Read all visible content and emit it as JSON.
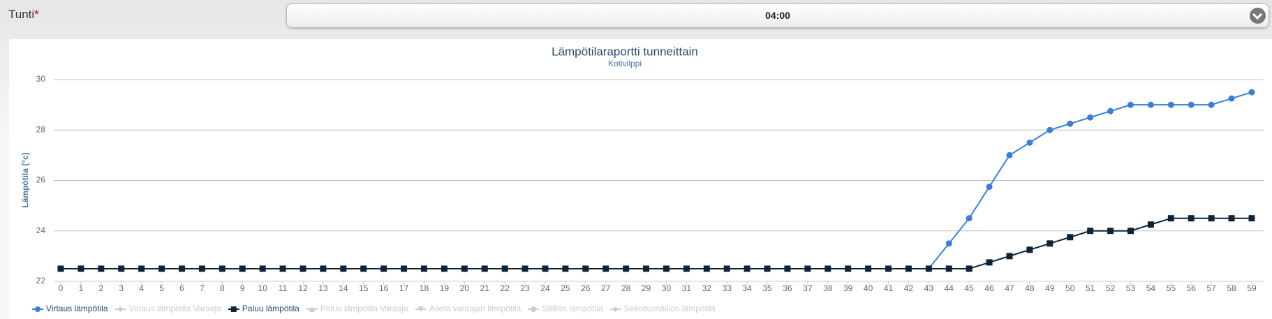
{
  "form": {
    "label": "Tunti",
    "required": "*",
    "value": "04:00"
  },
  "chart_data": {
    "type": "line",
    "title": "Lämpötilaraportti tunneittain",
    "subtitle": "Kotivilppi",
    "ylabel": "Lämpötila (°c)",
    "x": [
      0,
      1,
      2,
      3,
      4,
      5,
      6,
      7,
      8,
      9,
      10,
      11,
      12,
      13,
      14,
      15,
      16,
      17,
      18,
      19,
      20,
      21,
      22,
      23,
      24,
      25,
      26,
      27,
      28,
      29,
      30,
      31,
      32,
      33,
      34,
      35,
      36,
      37,
      38,
      39,
      40,
      41,
      42,
      43,
      44,
      45,
      46,
      47,
      48,
      49,
      50,
      51,
      52,
      53,
      54,
      55,
      56,
      57,
      58,
      59
    ],
    "xlim": [
      0,
      59
    ],
    "xticks": [
      0,
      1,
      2,
      3,
      4,
      5,
      6,
      7,
      8,
      9,
      10,
      11,
      12,
      13,
      14,
      15,
      16,
      17,
      18,
      19,
      20,
      21,
      22,
      23,
      24,
      25,
      26,
      27,
      28,
      29,
      30,
      31,
      32,
      33,
      34,
      35,
      36,
      37,
      38,
      39,
      40,
      41,
      42,
      43,
      44,
      45,
      46,
      47,
      48,
      49,
      50,
      51,
      52,
      53,
      54,
      55,
      56,
      57,
      58,
      59
    ],
    "ylim": [
      22,
      30
    ],
    "yticks": [
      22,
      24,
      26,
      28,
      30
    ],
    "grid": true,
    "legend": "bottom-left",
    "series": [
      {
        "name": "Virtaus lämpötila",
        "color": "#3a7fd5",
        "marker": "circle",
        "values": [
          22.5,
          22.5,
          22.5,
          22.5,
          22.5,
          22.5,
          22.5,
          22.5,
          22.5,
          22.5,
          22.5,
          22.5,
          22.5,
          22.5,
          22.5,
          22.5,
          22.5,
          22.5,
          22.5,
          22.5,
          22.5,
          22.5,
          22.5,
          22.5,
          22.5,
          22.5,
          22.5,
          22.5,
          22.5,
          22.5,
          22.5,
          22.5,
          22.5,
          22.5,
          22.5,
          22.5,
          22.5,
          22.5,
          22.5,
          22.5,
          22.5,
          22.5,
          22.5,
          22.5,
          23.5,
          24.5,
          25.75,
          27,
          27.5,
          28,
          28.25,
          28.5,
          28.75,
          29,
          29,
          29,
          29,
          29,
          29.25,
          29.5
        ]
      },
      {
        "name": "Virtaus lämpötila Varaaja",
        "color": "#cccccc",
        "marker": "diamond",
        "visible": false
      },
      {
        "name": "Paluu lämpötila",
        "color": "#0d233a",
        "marker": "square",
        "values": [
          22.5,
          22.5,
          22.5,
          22.5,
          22.5,
          22.5,
          22.5,
          22.5,
          22.5,
          22.5,
          22.5,
          22.5,
          22.5,
          22.5,
          22.5,
          22.5,
          22.5,
          22.5,
          22.5,
          22.5,
          22.5,
          22.5,
          22.5,
          22.5,
          22.5,
          22.5,
          22.5,
          22.5,
          22.5,
          22.5,
          22.5,
          22.5,
          22.5,
          22.5,
          22.5,
          22.5,
          22.5,
          22.5,
          22.5,
          22.5,
          22.5,
          22.5,
          22.5,
          22.5,
          22.5,
          22.5,
          22.75,
          23,
          23.25,
          23.5,
          23.75,
          24,
          24,
          24,
          24.25,
          24.5,
          24.5,
          24.5,
          24.5,
          24.5
        ]
      },
      {
        "name": "Paluu lämpötila Varaaja",
        "color": "#cccccc",
        "marker": "triangle",
        "visible": false
      },
      {
        "name": "Aseta varaajan lämpötila",
        "color": "#cccccc",
        "marker": "triangle-down",
        "visible": false
      },
      {
        "name": "Säiliön lämpötila",
        "color": "#cccccc",
        "marker": "circle",
        "visible": false
      },
      {
        "name": "Sekoitussäiliön lämpötila",
        "color": "#cccccc",
        "marker": "diamond",
        "visible": false
      }
    ]
  }
}
